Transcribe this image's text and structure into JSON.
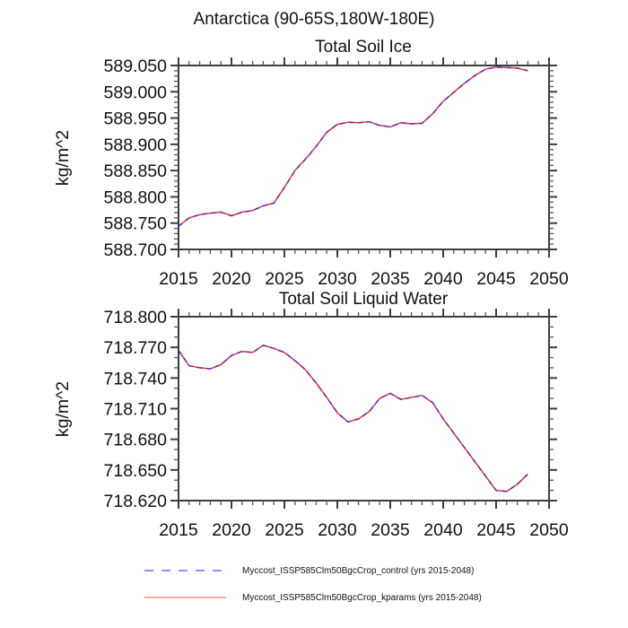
{
  "header": {
    "title": "Antarctica (90-65S,180W-180E)"
  },
  "chart_data": [
    {
      "type": "line",
      "title": "Total Soil Ice",
      "ylabel": "kg/m^2",
      "xlabel": "",
      "xlim": [
        2015,
        2050
      ],
      "ylim": [
        588.7,
        589.05
      ],
      "grid": false,
      "xticks": {
        "labels": [
          "2015",
          "2020",
          "2025",
          "2030",
          "2035",
          "2040",
          "2045",
          "2050"
        ],
        "minor_step": 1
      },
      "yticks": {
        "labels": [
          "589.050",
          "589.000",
          "588.950",
          "588.900",
          "588.850",
          "588.800",
          "588.750",
          "588.700"
        ],
        "minor_step": 0.01
      },
      "x": [
        2015,
        2016,
        2017,
        2018,
        2019,
        2020,
        2021,
        2022,
        2023,
        2024,
        2025,
        2026,
        2027,
        2028,
        2029,
        2030,
        2031,
        2032,
        2033,
        2034,
        2035,
        2036,
        2037,
        2038,
        2039,
        2040,
        2041,
        2042,
        2043,
        2044,
        2045,
        2046,
        2047,
        2048
      ],
      "series": [
        {
          "name": "Myccost_ISSP585Clm50BgcCrop_control (yrs 2015-2048)",
          "line_style": "dashed",
          "color": "#4433cc",
          "values": [
            588.744,
            588.76,
            588.766,
            588.769,
            588.771,
            588.764,
            588.771,
            588.774,
            588.783,
            588.788,
            588.818,
            588.85,
            588.872,
            588.896,
            588.923,
            588.938,
            588.942,
            588.941,
            588.943,
            588.936,
            588.933,
            588.941,
            588.939,
            588.94,
            588.958,
            588.982,
            588.999,
            589.016,
            589.031,
            589.043,
            589.047,
            589.046,
            589.045,
            589.04
          ]
        },
        {
          "name": "Myccost_ISSP585Clm50BgcCrop_kparams (yrs 2015-2048)",
          "line_style": "solid",
          "color": "#ff2d2d",
          "values": [
            588.744,
            588.76,
            588.766,
            588.769,
            588.771,
            588.764,
            588.771,
            588.774,
            588.783,
            588.788,
            588.818,
            588.85,
            588.872,
            588.896,
            588.923,
            588.938,
            588.942,
            588.941,
            588.943,
            588.936,
            588.933,
            588.941,
            588.939,
            588.94,
            588.958,
            588.982,
            588.999,
            589.016,
            589.031,
            589.043,
            589.047,
            589.046,
            589.045,
            589.04
          ]
        }
      ]
    },
    {
      "type": "line",
      "title": "Total Soil Liquid Water",
      "ylabel": "kg/m^2",
      "xlabel": "",
      "xlim": [
        2015,
        2050
      ],
      "ylim": [
        718.62,
        718.8
      ],
      "grid": false,
      "xticks": {
        "labels": [
          "2015",
          "2020",
          "2025",
          "2030",
          "2035",
          "2040",
          "2045",
          "2050"
        ],
        "minor_step": 1
      },
      "yticks": {
        "labels": [
          "718.800",
          "718.770",
          "718.740",
          "718.710",
          "718.680",
          "718.650",
          "718.620"
        ],
        "minor_step": 0.01
      },
      "x": [
        2015,
        2016,
        2017,
        2018,
        2019,
        2020,
        2021,
        2022,
        2023,
        2024,
        2025,
        2026,
        2027,
        2028,
        2029,
        2030,
        2031,
        2032,
        2033,
        2034,
        2035,
        2036,
        2037,
        2038,
        2039,
        2040,
        2041,
        2042,
        2043,
        2044,
        2045,
        2046,
        2047,
        2048
      ],
      "series": [
        {
          "name": "Myccost_ISSP585Clm50BgcCrop_control (yrs 2015-2048)",
          "line_style": "dashed",
          "color": "#4433cc",
          "values": [
            718.767,
            718.752,
            718.75,
            718.749,
            718.753,
            718.762,
            718.766,
            718.765,
            718.772,
            718.769,
            718.765,
            718.757,
            718.748,
            718.735,
            718.721,
            718.706,
            718.697,
            718.7,
            718.707,
            718.72,
            718.725,
            718.719,
            718.721,
            718.723,
            718.716,
            718.7,
            718.686,
            718.672,
            718.658,
            718.644,
            718.63,
            718.629,
            718.636,
            718.646
          ]
        },
        {
          "name": "Myccost_ISSP585Clm50BgcCrop_kparams (yrs 2015-2048)",
          "line_style": "solid",
          "color": "#ff2d2d",
          "values": [
            718.767,
            718.752,
            718.75,
            718.749,
            718.753,
            718.762,
            718.766,
            718.765,
            718.772,
            718.769,
            718.765,
            718.757,
            718.748,
            718.735,
            718.721,
            718.706,
            718.697,
            718.7,
            718.707,
            718.72,
            718.725,
            718.719,
            718.721,
            718.723,
            718.716,
            718.7,
            718.686,
            718.672,
            718.658,
            718.644,
            718.63,
            718.629,
            718.636,
            718.646
          ]
        }
      ]
    }
  ],
  "legend": {
    "entries": [
      {
        "label": "Myccost_ISSP585Clm50BgcCrop_control (yrs 2015-2048)",
        "line_style": "dashed",
        "color": "#6f6fe8"
      },
      {
        "label": "Myccost_ISSP585Clm50BgcCrop_kparams (yrs 2015-2048)",
        "line_style": "solid",
        "color": "#ff8a80"
      }
    ]
  },
  "style": {
    "axis_color": "#3d3d3d",
    "background": "#ffffff"
  }
}
